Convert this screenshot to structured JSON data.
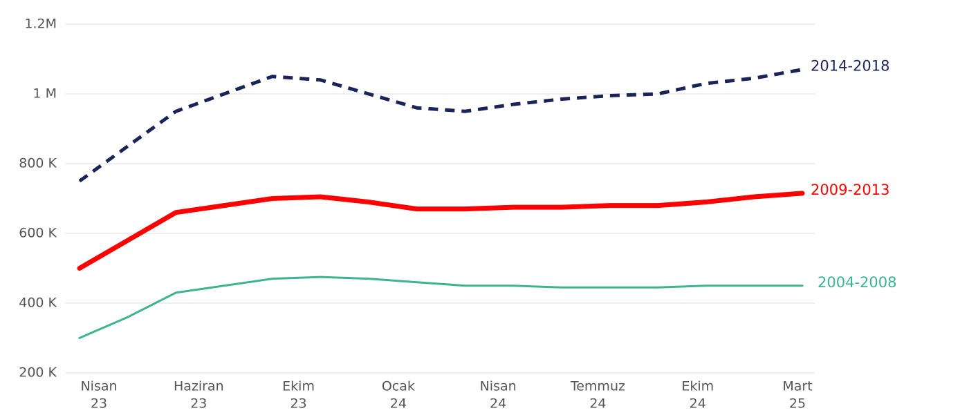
{
  "chart_data": {
    "type": "line",
    "ylim": [
      200000,
      1200000
    ],
    "yticks": [
      {
        "value": 200000,
        "label": "200 K"
      },
      {
        "value": 400000,
        "label": "400 K"
      },
      {
        "value": 600000,
        "label": "600 K"
      },
      {
        "value": 800000,
        "label": "800 K"
      },
      {
        "value": 1000000,
        "label": "1 M"
      },
      {
        "value": 1200000,
        "label": "1.2M"
      }
    ],
    "grid": true,
    "x_labels": [
      {
        "month": "Nisan",
        "year": "23"
      },
      {
        "month": "Haziran",
        "year": "23"
      },
      {
        "month": "Ekim",
        "year": "23"
      },
      {
        "month": "Ocak",
        "year": "24"
      },
      {
        "month": "Nisan",
        "year": "24"
      },
      {
        "month": "Temmuz",
        "year": "24"
      },
      {
        "month": "Ekim",
        "year": "24"
      },
      {
        "month": "Mart",
        "year": "25"
      }
    ],
    "series": [
      {
        "name": "2014-2018",
        "color": "#1b2456",
        "style": "dashed",
        "values": [
          750000,
          850000,
          950000,
          1000000,
          1050000,
          1040000,
          1000000,
          960000,
          950000,
          970000,
          985000,
          995000,
          1000000,
          1030000,
          1045000,
          1070000
        ]
      },
      {
        "name": "2009-2013",
        "color": "#ff0000",
        "style": "solid",
        "values": [
          500000,
          580000,
          660000,
          680000,
          700000,
          705000,
          690000,
          670000,
          670000,
          675000,
          675000,
          680000,
          680000,
          690000,
          705000,
          715000
        ]
      },
      {
        "name": "2004-2008",
        "color": "#3cb48f",
        "style": "solid",
        "values": [
          300000,
          360000,
          430000,
          450000,
          470000,
          475000,
          470000,
          460000,
          450000,
          450000,
          445000,
          445000,
          445000,
          450000,
          450000,
          450000
        ]
      }
    ]
  }
}
